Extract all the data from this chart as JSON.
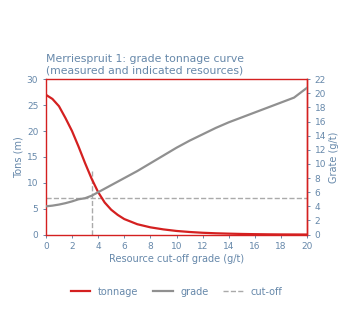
{
  "title_line1": "Merriespruit 1: grade tonnage curve",
  "title_line2": "(measured and indicated resources)",
  "xlabel": "Resource cut-off grade (g/t)",
  "ylabel_left": "Tons (m)",
  "ylabel_right": "Grate (g/t)",
  "xlim": [
    0,
    20
  ],
  "ylim_left": [
    0,
    30
  ],
  "ylim_right": [
    0,
    22
  ],
  "xticks": [
    0,
    2,
    4,
    6,
    8,
    10,
    12,
    14,
    16,
    18,
    20
  ],
  "yticks_left": [
    0,
    5,
    10,
    15,
    20,
    25,
    30
  ],
  "yticks_right": [
    0,
    2,
    4,
    6,
    8,
    10,
    12,
    14,
    16,
    18,
    20,
    22
  ],
  "cutoff_x": 3.5,
  "cutoff_y_tons_top": 12.5,
  "cutoff_y_tons_horiz": 7.0,
  "tonnage_x": [
    0,
    0.5,
    1.0,
    1.5,
    2.0,
    2.5,
    3.0,
    3.5,
    4.0,
    4.5,
    5.0,
    5.5,
    6.0,
    7.0,
    8.0,
    9.0,
    10.0,
    11.0,
    12.0,
    13.0,
    14.0,
    15.0,
    16.0,
    17.0,
    18.0,
    19.0,
    20.0
  ],
  "tonnage_y": [
    27.0,
    26.2,
    24.8,
    22.5,
    20.0,
    17.0,
    13.8,
    10.8,
    8.2,
    6.2,
    4.8,
    3.8,
    3.0,
    2.0,
    1.4,
    1.0,
    0.7,
    0.5,
    0.35,
    0.25,
    0.18,
    0.12,
    0.08,
    0.05,
    0.03,
    0.02,
    0.01
  ],
  "grade_x": [
    0,
    0.5,
    1.0,
    1.5,
    2.0,
    2.5,
    3.0,
    3.5,
    4.0,
    4.5,
    5.0,
    5.5,
    6.0,
    7.0,
    8.0,
    9.0,
    10.0,
    11.0,
    12.0,
    13.0,
    14.0,
    15.0,
    16.0,
    17.0,
    18.0,
    19.0,
    20.0
  ],
  "grade_y": [
    4.0,
    4.1,
    4.25,
    4.45,
    4.7,
    5.0,
    5.15,
    5.5,
    6.0,
    6.5,
    7.0,
    7.5,
    8.0,
    9.0,
    10.1,
    11.2,
    12.3,
    13.3,
    14.2,
    15.1,
    15.9,
    16.6,
    17.3,
    18.0,
    18.7,
    19.4,
    20.8
  ],
  "tonnage_color": "#d42020",
  "grade_color": "#909090",
  "cutoff_color": "#aaaaaa",
  "border_color": "#d42020",
  "title_color": "#6688aa",
  "axis_label_color": "#6688aa",
  "tick_color": "#6688aa",
  "legend_tonnage_color": "#d42020",
  "legend_grade_color": "#909090",
  "legend_cutoff_color": "#aaaaaa",
  "legend_text_color": "#6688aa",
  "title_fontsize": 7.8,
  "axis_label_fontsize": 7.0,
  "tick_fontsize": 6.5,
  "legend_fontsize": 7.0,
  "linewidth": 1.6,
  "cutoff_linewidth": 1.0
}
